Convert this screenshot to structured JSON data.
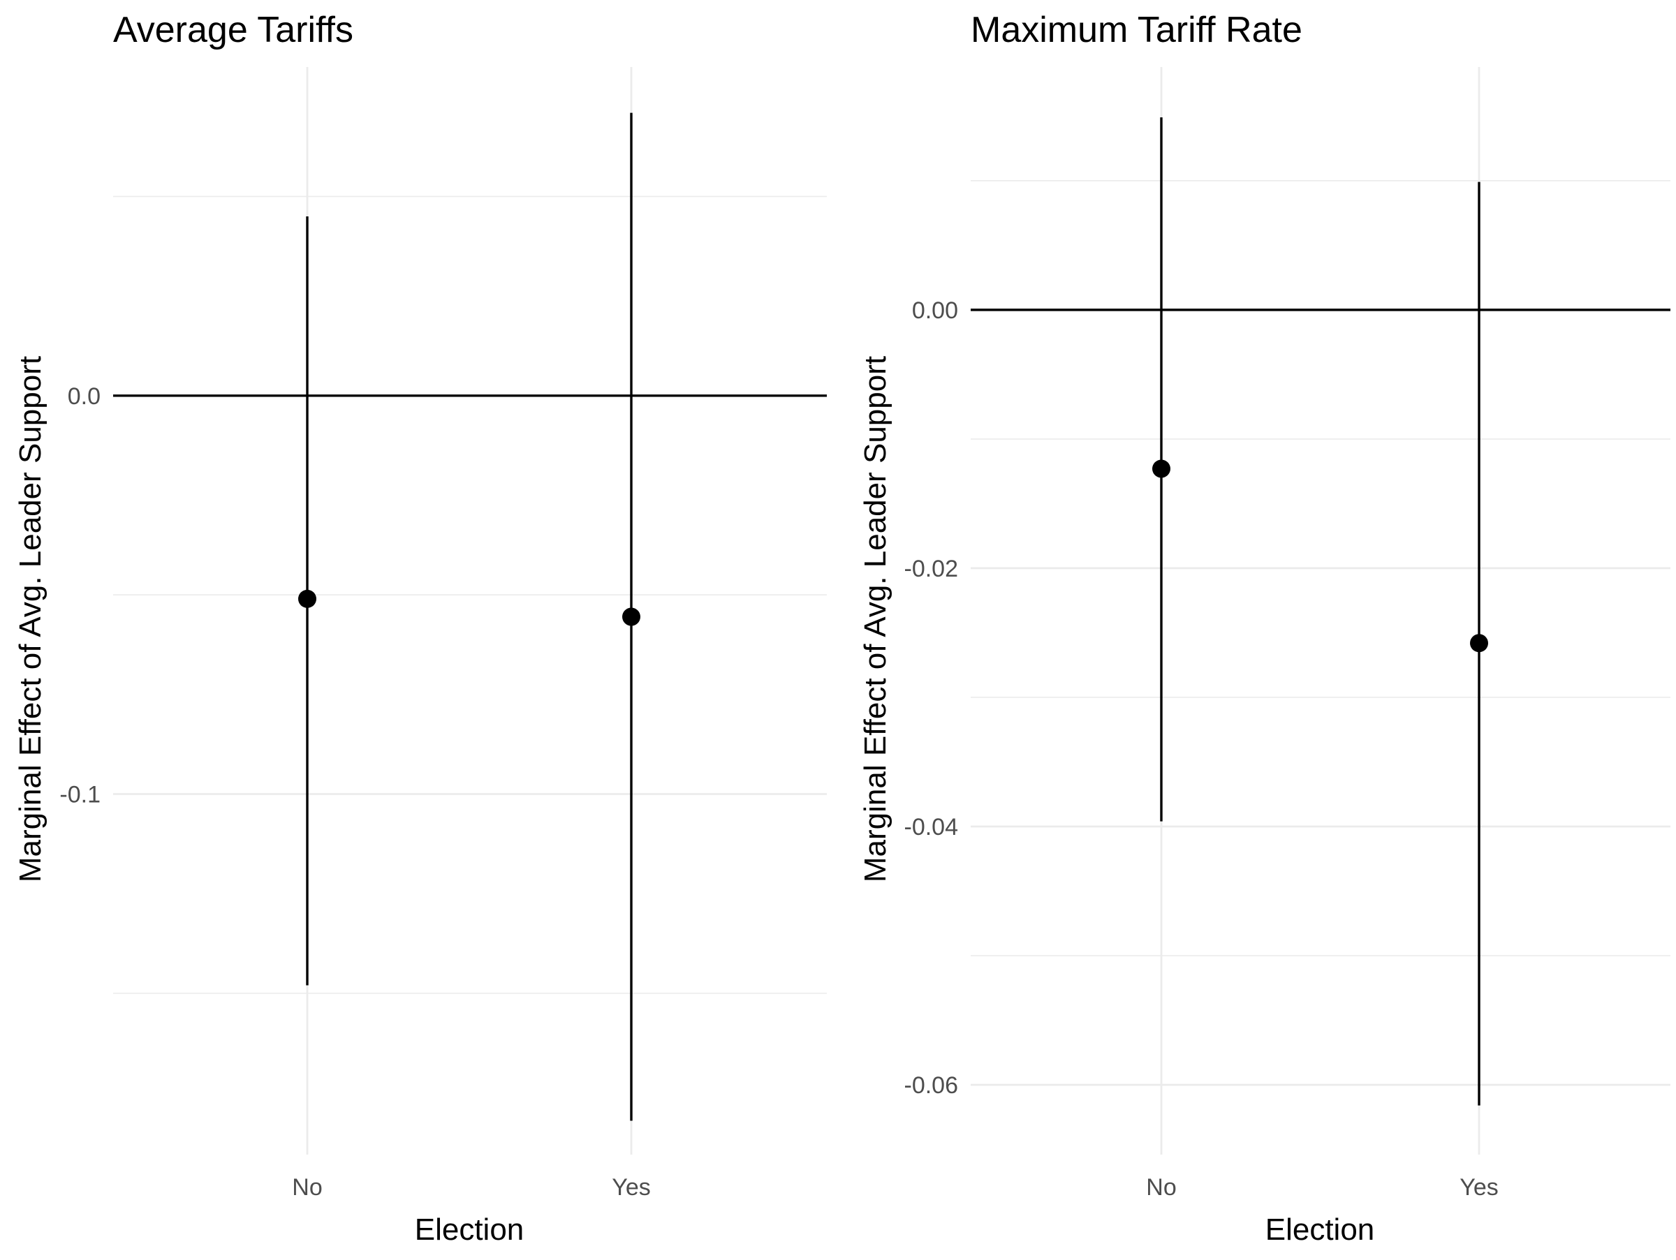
{
  "chart_data": [
    {
      "type": "errorbar",
      "title": "Average Tariffs",
      "xlabel": "Election",
      "ylabel": "Marginal Effect of Avg. Leader Support",
      "categories": [
        "No",
        "Yes"
      ],
      "estimates": [
        -0.051,
        -0.0555
      ],
      "ci_lower": [
        -0.148,
        -0.182
      ],
      "ci_upper": [
        0.045,
        0.071
      ],
      "ylim": [
        -0.1905,
        0.0825
      ],
      "yticks": [
        0.0,
        -0.1
      ],
      "ytick_labels": [
        "0.0",
        "-0.1"
      ],
      "hline": 0,
      "grid": true
    },
    {
      "type": "errorbar",
      "title": "Maximum Tariff Rate",
      "xlabel": "Election",
      "ylabel": "Marginal Effect of Avg. Leader Support",
      "categories": [
        "No",
        "Yes"
      ],
      "estimates": [
        -0.0123,
        -0.0258
      ],
      "ci_lower": [
        -0.0396,
        -0.0616
      ],
      "ci_upper": [
        0.0149,
        0.0099
      ],
      "ylim": [
        -0.0654,
        0.0188
      ],
      "yticks": [
        0.0,
        -0.02,
        -0.04,
        -0.06
      ],
      "ytick_labels": [
        "0.00",
        "-0.02",
        "-0.04",
        "-0.06"
      ],
      "hline": 0,
      "grid": true
    }
  ]
}
